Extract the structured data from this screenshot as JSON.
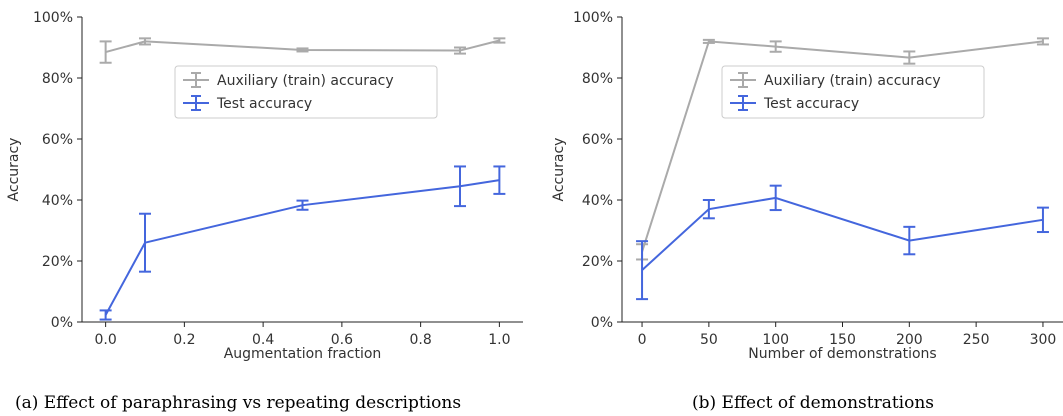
{
  "chart_data": [
    {
      "type": "line",
      "xlabel": "Augmentation fraction",
      "ylabel": "Accuracy",
      "xlim": [
        -0.06,
        1.06
      ],
      "ylim": [
        0,
        100
      ],
      "xticks": [
        0.0,
        0.2,
        0.4,
        0.6,
        0.8,
        1.0
      ],
      "xtick_labels": [
        "0.0",
        "0.2",
        "0.4",
        "0.6",
        "0.8",
        "1.0"
      ],
      "yticks": [
        0,
        20,
        40,
        60,
        80,
        100
      ],
      "ytick_labels": [
        "0%",
        "20%",
        "40%",
        "60%",
        "80%",
        "100%"
      ],
      "caption": "(a) Effect of paraphrasing vs repeating descriptions",
      "legend_position": "upper-middle",
      "series": [
        {
          "name": "Auxiliary (train) accuracy",
          "color": "#aaaaaa",
          "x": [
            0.0,
            0.1,
            0.5,
            0.9,
            1.0
          ],
          "y": [
            88.5,
            92.0,
            89.2,
            89.0,
            92.3
          ],
          "yerr": [
            3.5,
            1.0,
            0.5,
            1.0,
            0.7
          ]
        },
        {
          "name": "Test accuracy",
          "color": "#4466dd",
          "x": [
            0.0,
            0.1,
            0.5,
            0.9,
            1.0
          ],
          "y": [
            2.3,
            26.0,
            38.3,
            44.5,
            46.5
          ],
          "yerr": [
            1.5,
            9.5,
            1.5,
            6.5,
            4.5
          ]
        }
      ]
    },
    {
      "type": "line",
      "xlabel": "Number of demonstrations",
      "ylabel": "Accuracy",
      "xlim": [
        -15,
        315
      ],
      "ylim": [
        0,
        100
      ],
      "xticks": [
        0,
        50,
        100,
        150,
        200,
        250,
        300
      ],
      "xtick_labels": [
        "0",
        "50",
        "100",
        "150",
        "200",
        "250",
        "300"
      ],
      "yticks": [
        0,
        20,
        40,
        60,
        80,
        100
      ],
      "ytick_labels": [
        "0%",
        "20%",
        "40%",
        "60%",
        "80%",
        "100%"
      ],
      "caption": "(b) Effect of demonstrations",
      "legend_position": "upper-middle",
      "series": [
        {
          "name": "Auxiliary (train) accuracy",
          "color": "#aaaaaa",
          "x": [
            0,
            50,
            100,
            200,
            300
          ],
          "y": [
            23.0,
            92.0,
            90.3,
            86.7,
            92.0
          ],
          "yerr": [
            2.5,
            0.5,
            1.7,
            2.0,
            1.0
          ]
        },
        {
          "name": "Test accuracy",
          "color": "#4466dd",
          "x": [
            0,
            50,
            100,
            200,
            300
          ],
          "y": [
            17.0,
            37.0,
            40.7,
            26.7,
            33.5
          ],
          "yerr": [
            9.5,
            3.0,
            4.0,
            4.5,
            4.0
          ]
        }
      ]
    }
  ]
}
